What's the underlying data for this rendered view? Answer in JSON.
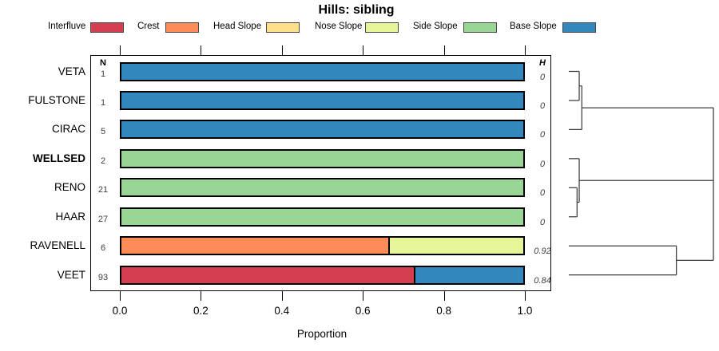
{
  "chart_data": {
    "type": "bar",
    "subtype": "horizontal-stacked-proportion",
    "title": "Hills: sibling",
    "xlabel": "Proportion",
    "xlim": [
      0,
      1
    ],
    "x_tick_labels": [
      "0.0",
      "0.2",
      "0.4",
      "0.6",
      "0.8",
      "1.0"
    ],
    "x_tick_values": [
      0.0,
      0.2,
      0.4,
      0.6,
      0.8,
      1.0
    ],
    "grid": false,
    "legend_position": "top",
    "legend": [
      {
        "label": "Interfluve",
        "color": "#D53E4F"
      },
      {
        "label": "Crest",
        "color": "#FC8D59"
      },
      {
        "label": "Head Slope",
        "color": "#FEE08B"
      },
      {
        "label": "Nose Slope",
        "color": "#E6F598"
      },
      {
        "label": "Side Slope",
        "color": "#99D594"
      },
      {
        "label": "Base Slope",
        "color": "#3288BD"
      }
    ],
    "columns": {
      "n_header": "N",
      "h_header": "H"
    },
    "rows": [
      {
        "name": "VETA",
        "bold": false,
        "n": "1",
        "h": "0",
        "segments": [
          {
            "class": "Base Slope",
            "proportion": 1.0
          }
        ]
      },
      {
        "name": "FULSTONE",
        "bold": false,
        "n": "1",
        "h": "0",
        "segments": [
          {
            "class": "Base Slope",
            "proportion": 1.0
          }
        ]
      },
      {
        "name": "CIRAC",
        "bold": false,
        "n": "5",
        "h": "0",
        "segments": [
          {
            "class": "Base Slope",
            "proportion": 1.0
          }
        ]
      },
      {
        "name": "WELLSED",
        "bold": true,
        "n": "2",
        "h": "0",
        "segments": [
          {
            "class": "Side Slope",
            "proportion": 1.0
          }
        ]
      },
      {
        "name": "RENO",
        "bold": false,
        "n": "21",
        "h": "0",
        "segments": [
          {
            "class": "Side Slope",
            "proportion": 1.0
          }
        ]
      },
      {
        "name": "HAAR",
        "bold": false,
        "n": "27",
        "h": "0",
        "segments": [
          {
            "class": "Side Slope",
            "proportion": 1.0
          }
        ]
      },
      {
        "name": "RAVENELL",
        "bold": false,
        "n": "6",
        "h": "0.92",
        "segments": [
          {
            "class": "Crest",
            "proportion": 0.665
          },
          {
            "class": "Nose Slope",
            "proportion": 0.335
          }
        ]
      },
      {
        "name": "VEET",
        "bold": false,
        "n": "93",
        "h": "0.84",
        "segments": [
          {
            "class": "Interfluve",
            "proportion": 0.728
          },
          {
            "class": "Base Slope",
            "proportion": 0.272
          }
        ]
      }
    ],
    "dendrogram": {
      "description": "hierarchical clustering of the 8 series; leaves at left (distance 0), root at right (distance 1); y is leaf row index 0-7",
      "merges": [
        {
          "members": [
            "VETA",
            "FULSTONE"
          ],
          "distance": 0.072
        },
        {
          "members": [
            "VETA+FULSTONE",
            "CIRAC"
          ],
          "distance": 0.09
        },
        {
          "members": [
            "RENO",
            "HAAR"
          ],
          "distance": 0.057
        },
        {
          "members": [
            "WELLSED",
            "RENO+HAAR"
          ],
          "distance": 0.072
        },
        {
          "members": [
            "RAVENELL",
            "VEET"
          ],
          "distance": 0.744
        },
        {
          "members": [
            "top-cluster",
            "middle-cluster",
            "bottom-cluster"
          ],
          "distance": 1.0
        }
      ],
      "segments": [
        {
          "x1": 0,
          "y1": 0,
          "x2": 0.072,
          "y2": 0
        },
        {
          "x1": 0,
          "y1": 1,
          "x2": 0.072,
          "y2": 1
        },
        {
          "x1": 0.072,
          "y1": 0,
          "x2": 0.072,
          "y2": 1
        },
        {
          "x1": 0.072,
          "y1": 0.5,
          "x2": 0.09,
          "y2": 0.5
        },
        {
          "x1": 0,
          "y1": 2,
          "x2": 0.09,
          "y2": 2
        },
        {
          "x1": 0.09,
          "y1": 0.5,
          "x2": 0.09,
          "y2": 2
        },
        {
          "x1": 0.09,
          "y1": 1.25,
          "x2": 1.0,
          "y2": 1.25
        },
        {
          "x1": 0,
          "y1": 3,
          "x2": 0.072,
          "y2": 3
        },
        {
          "x1": 0,
          "y1": 4,
          "x2": 0.057,
          "y2": 4
        },
        {
          "x1": 0,
          "y1": 5,
          "x2": 0.057,
          "y2": 5
        },
        {
          "x1": 0.057,
          "y1": 4,
          "x2": 0.057,
          "y2": 5
        },
        {
          "x1": 0.057,
          "y1": 4.5,
          "x2": 0.072,
          "y2": 4.5
        },
        {
          "x1": 0.072,
          "y1": 3,
          "x2": 0.072,
          "y2": 4.5
        },
        {
          "x1": 0.072,
          "y1": 3.75,
          "x2": 1.0,
          "y2": 3.75
        },
        {
          "x1": 0,
          "y1": 6,
          "x2": 0.744,
          "y2": 6
        },
        {
          "x1": 0,
          "y1": 7,
          "x2": 0.744,
          "y2": 7
        },
        {
          "x1": 0.744,
          "y1": 6,
          "x2": 0.744,
          "y2": 7
        },
        {
          "x1": 0.744,
          "y1": 6.5,
          "x2": 1.0,
          "y2": 6.5
        },
        {
          "x1": 1.0,
          "y1": 1.25,
          "x2": 1.0,
          "y2": 6.5
        }
      ]
    }
  }
}
